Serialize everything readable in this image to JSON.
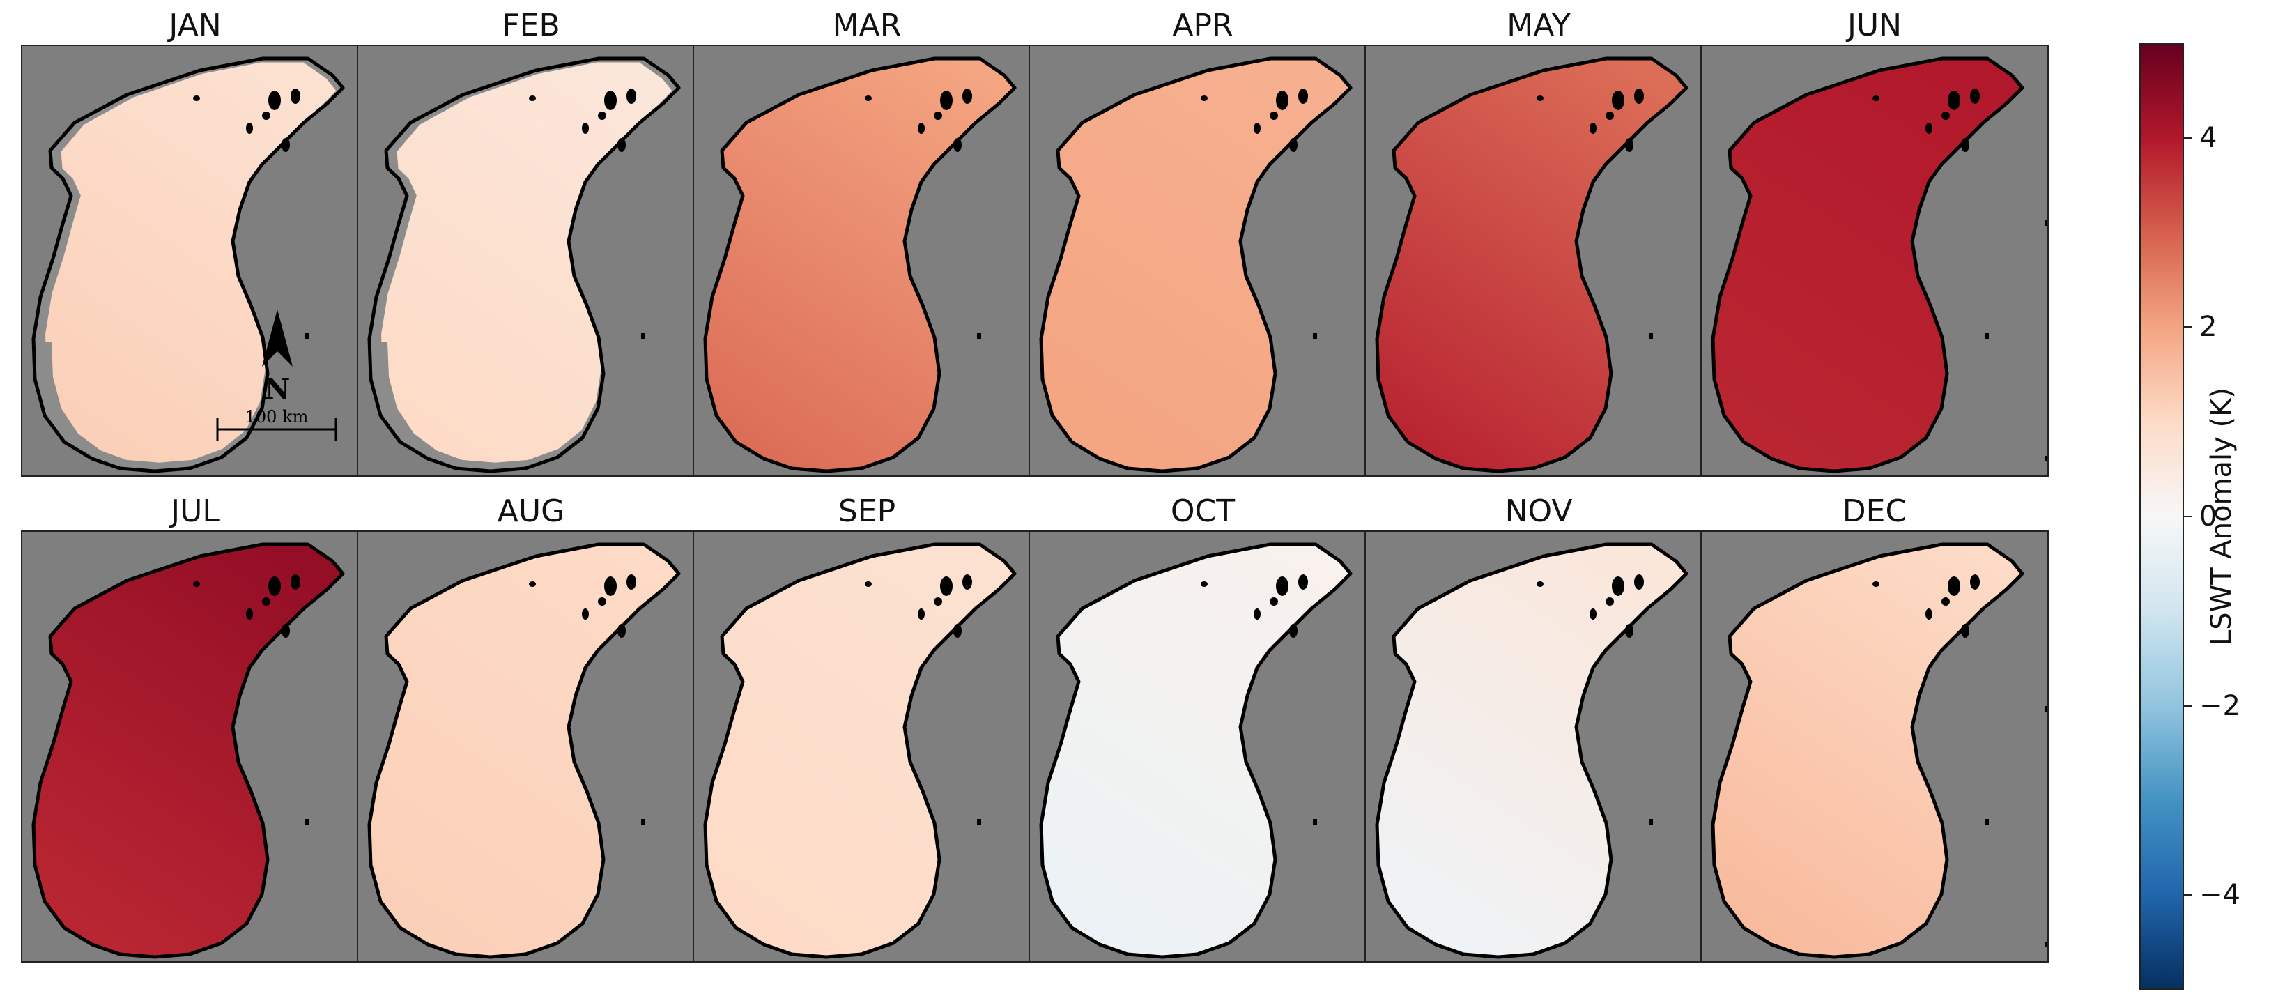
{
  "panels": [
    {
      "label": "JAN",
      "anomaly_north": 0.8,
      "anomaly_south": 1.2,
      "ice_gray": true
    },
    {
      "label": "FEB",
      "anomaly_north": 0.6,
      "anomaly_south": 1.0,
      "ice_gray": true
    },
    {
      "label": "MAR",
      "anomaly_north": 2.0,
      "anomaly_south": 2.8,
      "ice_gray": false
    },
    {
      "label": "APR",
      "anomaly_north": 1.8,
      "anomaly_south": 2.0,
      "ice_gray": false
    },
    {
      "label": "MAY",
      "anomaly_north": 2.8,
      "anomaly_south": 3.8,
      "ice_gray": false
    },
    {
      "label": "JUN",
      "anomaly_north": 4.0,
      "anomaly_south": 3.8,
      "ice_gray": false
    },
    {
      "label": "JUL",
      "anomaly_north": 4.4,
      "anomaly_south": 3.8,
      "ice_gray": false
    },
    {
      "label": "AUG",
      "anomaly_north": 1.0,
      "anomaly_south": 1.2,
      "ice_gray": false
    },
    {
      "label": "SEP",
      "anomaly_north": 0.8,
      "anomaly_south": 1.0,
      "ice_gray": false
    },
    {
      "label": "OCT",
      "anomaly_north": 0.2,
      "anomaly_south": -0.3,
      "ice_gray": false
    },
    {
      "label": "NOV",
      "anomaly_north": 0.6,
      "anomaly_south": -0.2,
      "ice_gray": false
    },
    {
      "label": "DEC",
      "anomaly_north": 1.0,
      "anomaly_south": 1.6,
      "ice_gray": false
    }
  ],
  "colorbar": {
    "label": "LSWT Anomaly (K)",
    "min": -5,
    "max": 5,
    "ticks": [
      {
        "value": 4,
        "label": "4"
      },
      {
        "value": 2,
        "label": "2"
      },
      {
        "value": 0,
        "label": "0"
      },
      {
        "value": -2,
        "label": "−2"
      },
      {
        "value": -4,
        "label": "−4"
      }
    ],
    "colormap": [
      "#053061",
      "#2166ac",
      "#4393c3",
      "#92c5de",
      "#d1e5f0",
      "#f7f7f7",
      "#fddbc7",
      "#f4a582",
      "#d6604d",
      "#b2182b",
      "#67001f"
    ]
  },
  "north_arrow": {
    "letter": "N"
  },
  "scale_bar": {
    "label": "100 km"
  },
  "colors": {
    "land": "#7f7f7f",
    "ice": "#8c8c8c",
    "outline": "#000000"
  }
}
